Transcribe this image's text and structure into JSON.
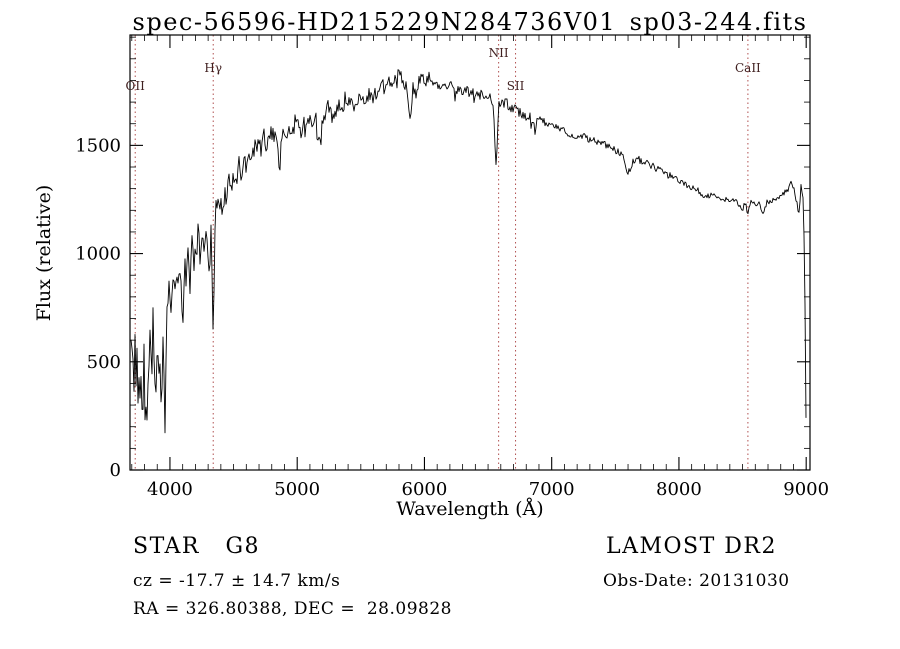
{
  "annotations": {
    "class_left": "STAR   G8",
    "class_right": "LAMOST DR2",
    "cz": "cz = -17.7 ± 14.7 km/s",
    "obs_date": "Obs-Date: 20131030",
    "ra_dec": "RA = 326.80388, DEC =  28.09828"
  },
  "chart_data": {
    "type": "line",
    "title": "spec-56596-HD215229N284736V01_sp03-244.fits",
    "xlabel": "Wavelength (Å)",
    "ylabel": "Flux (relative)",
    "xlim": [
      3686,
      9030
    ],
    "ylim": [
      0,
      2010
    ],
    "x_ticks": [
      4000,
      5000,
      6000,
      7000,
      8000,
      9000
    ],
    "y_ticks": [
      0,
      500,
      1000,
      1500
    ],
    "x_minor_step": 100,
    "y_minor_step": 100,
    "grid": false,
    "legend": "none",
    "line_color": "#000000",
    "marker_color": "#b05050",
    "marker_label_color": "#402020",
    "line_markers": [
      {
        "label": "OII",
        "wavelength": 3727,
        "label_y": 90
      },
      {
        "label": "Hγ",
        "wavelength": 4340,
        "label_y": 72
      },
      {
        "label": "NII",
        "wavelength": 6583,
        "label_y": 57
      },
      {
        "label": "SII",
        "wavelength": 6716,
        "label_y": 90
      },
      {
        "label": "CaII",
        "wavelength": 8542,
        "label_y": 72
      }
    ],
    "noise_segments": [
      {
        "max_w": 4000,
        "amp": 110
      },
      {
        "max_w": 4450,
        "amp": 70
      },
      {
        "max_w": 5000,
        "amp": 48
      },
      {
        "max_w": 6050,
        "amp": 38
      },
      {
        "max_w": 7000,
        "amp": 22
      },
      {
        "max_w": 8000,
        "amp": 16
      },
      {
        "max_w": 9100,
        "amp": 13
      }
    ],
    "series": [
      {
        "name": "flux",
        "points": [
          [
            3690,
            20
          ],
          [
            3694,
            600
          ],
          [
            3702,
            480
          ],
          [
            3710,
            590
          ],
          [
            3718,
            400
          ],
          [
            3726,
            560
          ],
          [
            3734,
            430
          ],
          [
            3742,
            520
          ],
          [
            3752,
            310
          ],
          [
            3762,
            470
          ],
          [
            3772,
            360
          ],
          [
            3784,
            300
          ],
          [
            3796,
            520
          ],
          [
            3808,
            240
          ],
          [
            3820,
            160
          ],
          [
            3832,
            560
          ],
          [
            3844,
            630
          ],
          [
            3856,
            420
          ],
          [
            3868,
            700
          ],
          [
            3880,
            480
          ],
          [
            3892,
            300
          ],
          [
            3904,
            660
          ],
          [
            3916,
            420
          ],
          [
            3926,
            680
          ],
          [
            3933,
            180
          ],
          [
            3942,
            580
          ],
          [
            3952,
            420
          ],
          [
            3962,
            200
          ],
          [
            3972,
            740
          ],
          [
            3982,
            620
          ],
          [
            3995,
            820
          ],
          [
            4010,
            700
          ],
          [
            4025,
            900
          ],
          [
            4040,
            780
          ],
          [
            4055,
            950
          ],
          [
            4070,
            840
          ],
          [
            4085,
            960
          ],
          [
            4102,
            640
          ],
          [
            4115,
            980
          ],
          [
            4130,
            860
          ],
          [
            4145,
            1020
          ],
          [
            4160,
            920
          ],
          [
            4175,
            1040
          ],
          [
            4190,
            960
          ],
          [
            4205,
            1030
          ],
          [
            4220,
            1070
          ],
          [
            4235,
            990
          ],
          [
            4250,
            1090
          ],
          [
            4265,
            1020
          ],
          [
            4280,
            1100
          ],
          [
            4295,
            1040
          ],
          [
            4310,
            920
          ],
          [
            4325,
            1140
          ],
          [
            4340,
            660
          ],
          [
            4355,
            1160
          ],
          [
            4370,
            1220
          ],
          [
            4385,
            1180
          ],
          [
            4400,
            1240
          ],
          [
            4420,
            1200
          ],
          [
            4440,
            1290
          ],
          [
            4460,
            1330
          ],
          [
            4480,
            1280
          ],
          [
            4500,
            1350
          ],
          [
            4520,
            1310
          ],
          [
            4540,
            1410
          ],
          [
            4560,
            1370
          ],
          [
            4580,
            1440
          ],
          [
            4600,
            1400
          ],
          [
            4620,
            1470
          ],
          [
            4640,
            1430
          ],
          [
            4660,
            1500
          ],
          [
            4680,
            1460
          ],
          [
            4700,
            1520
          ],
          [
            4720,
            1480
          ],
          [
            4740,
            1550
          ],
          [
            4760,
            1500
          ],
          [
            4780,
            1540
          ],
          [
            4800,
            1560
          ],
          [
            4820,
            1510
          ],
          [
            4840,
            1550
          ],
          [
            4861,
            1340
          ],
          [
            4880,
            1550
          ],
          [
            4900,
            1570
          ],
          [
            4920,
            1530
          ],
          [
            4940,
            1580
          ],
          [
            4960,
            1540
          ],
          [
            4980,
            1600
          ],
          [
            5000,
            1620
          ],
          [
            5025,
            1560
          ],
          [
            5050,
            1610
          ],
          [
            5075,
            1570
          ],
          [
            5100,
            1630
          ],
          [
            5125,
            1590
          ],
          [
            5150,
            1620
          ],
          [
            5175,
            1480
          ],
          [
            5200,
            1620
          ],
          [
            5225,
            1660
          ],
          [
            5250,
            1680
          ],
          [
            5275,
            1630
          ],
          [
            5300,
            1660
          ],
          [
            5325,
            1700
          ],
          [
            5350,
            1660
          ],
          [
            5375,
            1710
          ],
          [
            5400,
            1670
          ],
          [
            5425,
            1720
          ],
          [
            5450,
            1690
          ],
          [
            5475,
            1730
          ],
          [
            5500,
            1700
          ],
          [
            5525,
            1740
          ],
          [
            5550,
            1710
          ],
          [
            5575,
            1750
          ],
          [
            5600,
            1720
          ],
          [
            5625,
            1760
          ],
          [
            5650,
            1740
          ],
          [
            5675,
            1770
          ],
          [
            5700,
            1750
          ],
          [
            5725,
            1790
          ],
          [
            5750,
            1810
          ],
          [
            5775,
            1780
          ],
          [
            5800,
            1840
          ],
          [
            5825,
            1800
          ],
          [
            5850,
            1790
          ],
          [
            5875,
            1700
          ],
          [
            5893,
            1620
          ],
          [
            5910,
            1760
          ],
          [
            5930,
            1800
          ],
          [
            5950,
            1780
          ],
          [
            5970,
            1820
          ],
          [
            6000,
            1790
          ],
          [
            6030,
            1810
          ],
          [
            6060,
            1780
          ],
          [
            6090,
            1800
          ],
          [
            6120,
            1770
          ],
          [
            6150,
            1790
          ],
          [
            6180,
            1760
          ],
          [
            6210,
            1780
          ],
          [
            6240,
            1750
          ],
          [
            6270,
            1770
          ],
          [
            6300,
            1740
          ],
          [
            6330,
            1760
          ],
          [
            6360,
            1730
          ],
          [
            6390,
            1750
          ],
          [
            6420,
            1720
          ],
          [
            6450,
            1740
          ],
          [
            6480,
            1710
          ],
          [
            6510,
            1720
          ],
          [
            6540,
            1700
          ],
          [
            6563,
            1380
          ],
          [
            6585,
            1700
          ],
          [
            6610,
            1690
          ],
          [
            6640,
            1700
          ],
          [
            6670,
            1680
          ],
          [
            6700,
            1670
          ],
          [
            6730,
            1660
          ],
          [
            6760,
            1650
          ],
          [
            6790,
            1640
          ],
          [
            6820,
            1630
          ],
          [
            6850,
            1625
          ],
          [
            6867,
            1560
          ],
          [
            6885,
            1620
          ],
          [
            6910,
            1615
          ],
          [
            6940,
            1605
          ],
          [
            6970,
            1595
          ],
          [
            7000,
            1590
          ],
          [
            7040,
            1580
          ],
          [
            7080,
            1570
          ],
          [
            7120,
            1560
          ],
          [
            7160,
            1550
          ],
          [
            7186,
            1520
          ],
          [
            7210,
            1545
          ],
          [
            7250,
            1540
          ],
          [
            7290,
            1530
          ],
          [
            7330,
            1525
          ],
          [
            7370,
            1515
          ],
          [
            7410,
            1505
          ],
          [
            7450,
            1495
          ],
          [
            7490,
            1480
          ],
          [
            7530,
            1465
          ],
          [
            7560,
            1450
          ],
          [
            7594,
            1370
          ],
          [
            7615,
            1390
          ],
          [
            7640,
            1430
          ],
          [
            7665,
            1440
          ],
          [
            7700,
            1430
          ],
          [
            7735,
            1420
          ],
          [
            7770,
            1410
          ],
          [
            7805,
            1400
          ],
          [
            7840,
            1385
          ],
          [
            7875,
            1375
          ],
          [
            7910,
            1365
          ],
          [
            7945,
            1355
          ],
          [
            7980,
            1345
          ],
          [
            8015,
            1330
          ],
          [
            8050,
            1320
          ],
          [
            8085,
            1310
          ],
          [
            8120,
            1300
          ],
          [
            8155,
            1290
          ],
          [
            8190,
            1265
          ],
          [
            8225,
            1270
          ],
          [
            8260,
            1268
          ],
          [
            8295,
            1262
          ],
          [
            8330,
            1256
          ],
          [
            8365,
            1252
          ],
          [
            8400,
            1248
          ],
          [
            8435,
            1244
          ],
          [
            8470,
            1230
          ],
          [
            8498,
            1195
          ],
          [
            8520,
            1235
          ],
          [
            8542,
            1185
          ],
          [
            8565,
            1235
          ],
          [
            8600,
            1232
          ],
          [
            8630,
            1228
          ],
          [
            8662,
            1195
          ],
          [
            8690,
            1235
          ],
          [
            8720,
            1245
          ],
          [
            8750,
            1252
          ],
          [
            8780,
            1262
          ],
          [
            8810,
            1272
          ],
          [
            8840,
            1285
          ],
          [
            8865,
            1300
          ],
          [
            8885,
            1330
          ],
          [
            8905,
            1290
          ],
          [
            8925,
            1240
          ],
          [
            8945,
            1180
          ],
          [
            8960,
            1320
          ],
          [
            8975,
            1260
          ],
          [
            8988,
            950
          ],
          [
            8996,
            400
          ],
          [
            9002,
            30
          ]
        ]
      }
    ]
  }
}
